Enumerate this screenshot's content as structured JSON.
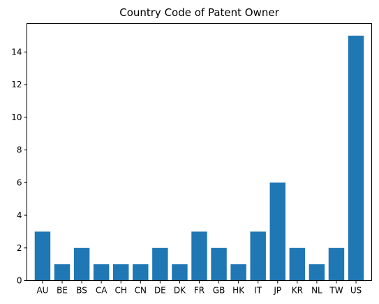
{
  "chart_data": {
    "type": "bar",
    "title": "Country Code of Patent Owner",
    "xlabel": "",
    "ylabel": "",
    "categories": [
      "AU",
      "BE",
      "BS",
      "CA",
      "CH",
      "CN",
      "DE",
      "DK",
      "FR",
      "GB",
      "HK",
      "IT",
      "JP",
      "KR",
      "NL",
      "TW",
      "US"
    ],
    "values": [
      3,
      1,
      2,
      1,
      1,
      1,
      2,
      1,
      3,
      2,
      1,
      3,
      6,
      2,
      1,
      2,
      15
    ],
    "ylim": [
      0,
      15.75
    ],
    "yticks": [
      0,
      2,
      4,
      6,
      8,
      10,
      12,
      14
    ],
    "grid": false,
    "legend": "none",
    "bar_color": "#1f77b4"
  }
}
